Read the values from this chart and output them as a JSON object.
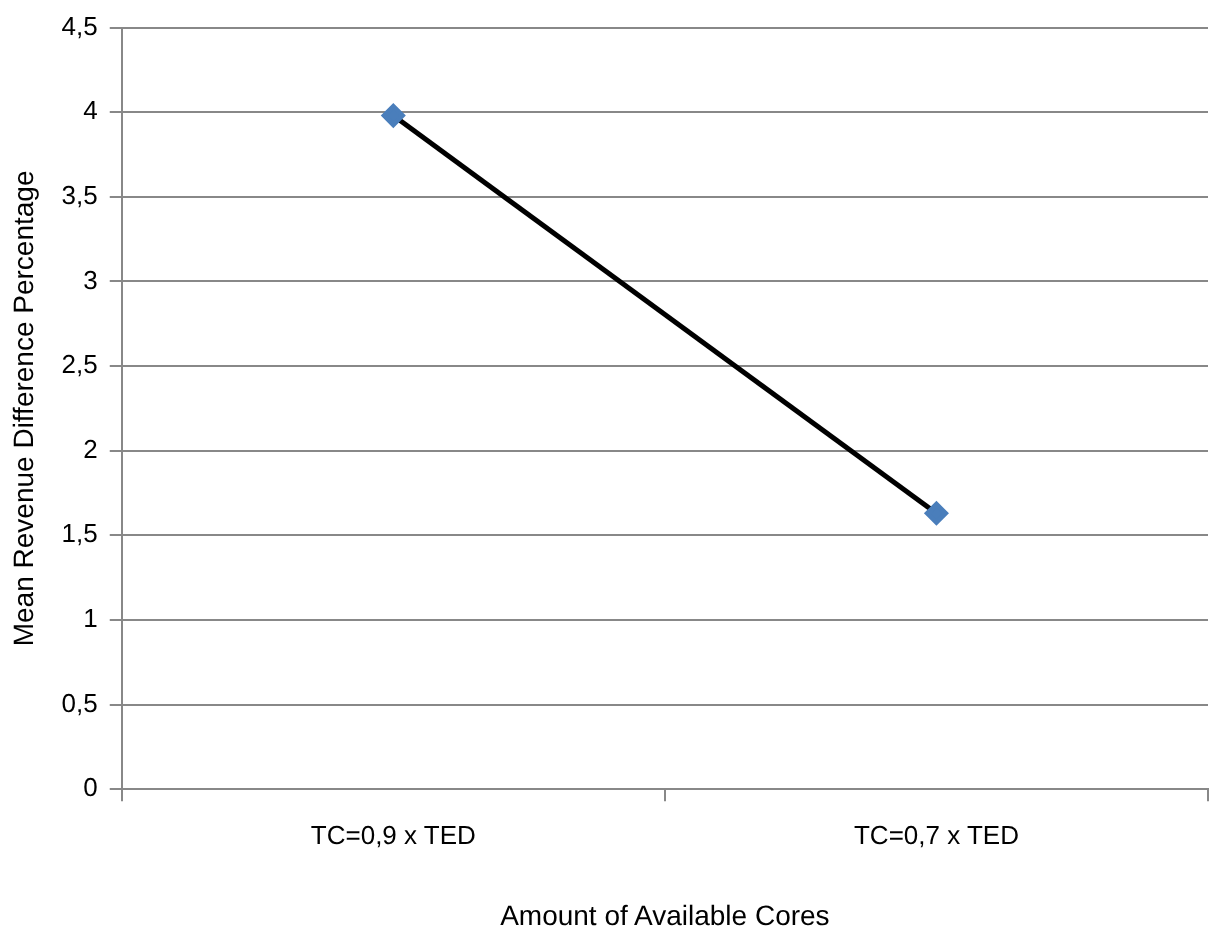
{
  "chart_data": {
    "type": "line",
    "xlabel": "Amount of Available Cores",
    "ylabel": "Mean Revenue Difference Percentage",
    "categories": [
      "TC=0,9 x TED",
      "TC=0,7 x TED"
    ],
    "series": [
      {
        "color": "#000000",
        "colors": [
          "#4a7ebb",
          "#4a7ebb"
        ],
        "values": [
          3.98,
          1.63
        ]
      }
    ],
    "ylim": [
      0,
      4.5
    ],
    "yticks": [
      0,
      {
        "value": 0.5,
        "label": "0,5"
      },
      1,
      {
        "value": 1.5,
        "label": "1,5"
      },
      2,
      {
        "value": 2.5,
        "label": "2,5"
      },
      3,
      {
        "value": 3.5,
        "label": "3,5"
      },
      4,
      {
        "value": 4.5,
        "label": "4,5"
      }
    ],
    "grid": "y",
    "marker": "diamond",
    "line_style": "solid",
    "legend": false
  }
}
